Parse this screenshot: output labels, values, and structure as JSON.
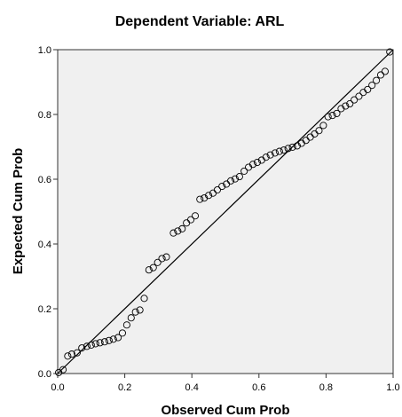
{
  "chart_data": {
    "type": "scatter",
    "title": "Dependent Variable: ARL",
    "xlabel": "Observed Cum Prob",
    "ylabel": "Expected Cum Prob",
    "xlim": [
      0.0,
      1.0
    ],
    "ylim": [
      0.0,
      1.0
    ],
    "xticks": [
      "0.0",
      "0.2",
      "0.4",
      "0.6",
      "0.8",
      "1.0"
    ],
    "yticks": [
      "0.0",
      "0.2",
      "0.4",
      "0.6",
      "0.8",
      "1.0"
    ],
    "grid": false,
    "reference_line": {
      "from": [
        0.0,
        0.0
      ],
      "to": [
        1.0,
        1.0
      ]
    },
    "colors": {
      "plot_background": "#f0f0f0",
      "marker_stroke": "#000000",
      "line": "#000000"
    },
    "points": [
      [
        0.003,
        0.003
      ],
      [
        0.016,
        0.012
      ],
      [
        0.03,
        0.054
      ],
      [
        0.042,
        0.06
      ],
      [
        0.058,
        0.064
      ],
      [
        0.072,
        0.079
      ],
      [
        0.087,
        0.084
      ],
      [
        0.1,
        0.088
      ],
      [
        0.113,
        0.092
      ],
      [
        0.126,
        0.095
      ],
      [
        0.14,
        0.098
      ],
      [
        0.153,
        0.102
      ],
      [
        0.166,
        0.106
      ],
      [
        0.18,
        0.111
      ],
      [
        0.193,
        0.125
      ],
      [
        0.206,
        0.15
      ],
      [
        0.219,
        0.172
      ],
      [
        0.232,
        0.19
      ],
      [
        0.245,
        0.196
      ],
      [
        0.258,
        0.232
      ],
      [
        0.272,
        0.32
      ],
      [
        0.285,
        0.327
      ],
      [
        0.298,
        0.343
      ],
      [
        0.311,
        0.355
      ],
      [
        0.324,
        0.36
      ],
      [
        0.345,
        0.434
      ],
      [
        0.358,
        0.44
      ],
      [
        0.371,
        0.447
      ],
      [
        0.384,
        0.465
      ],
      [
        0.397,
        0.475
      ],
      [
        0.41,
        0.487
      ],
      [
        0.424,
        0.538
      ],
      [
        0.437,
        0.542
      ],
      [
        0.45,
        0.55
      ],
      [
        0.463,
        0.557
      ],
      [
        0.476,
        0.567
      ],
      [
        0.49,
        0.578
      ],
      [
        0.503,
        0.585
      ],
      [
        0.516,
        0.595
      ],
      [
        0.529,
        0.601
      ],
      [
        0.542,
        0.608
      ],
      [
        0.556,
        0.625
      ],
      [
        0.569,
        0.637
      ],
      [
        0.582,
        0.646
      ],
      [
        0.595,
        0.652
      ],
      [
        0.608,
        0.659
      ],
      [
        0.621,
        0.668
      ],
      [
        0.634,
        0.675
      ],
      [
        0.648,
        0.681
      ],
      [
        0.661,
        0.686
      ],
      [
        0.674,
        0.69
      ],
      [
        0.687,
        0.695
      ],
      [
        0.7,
        0.699
      ],
      [
        0.714,
        0.703
      ],
      [
        0.727,
        0.711
      ],
      [
        0.74,
        0.72
      ],
      [
        0.753,
        0.73
      ],
      [
        0.766,
        0.74
      ],
      [
        0.779,
        0.75
      ],
      [
        0.792,
        0.766
      ],
      [
        0.806,
        0.793
      ],
      [
        0.819,
        0.797
      ],
      [
        0.832,
        0.803
      ],
      [
        0.845,
        0.818
      ],
      [
        0.858,
        0.826
      ],
      [
        0.871,
        0.833
      ],
      [
        0.884,
        0.845
      ],
      [
        0.898,
        0.856
      ],
      [
        0.911,
        0.868
      ],
      [
        0.924,
        0.877
      ],
      [
        0.937,
        0.89
      ],
      [
        0.95,
        0.905
      ],
      [
        0.963,
        0.922
      ],
      [
        0.976,
        0.933
      ],
      [
        0.99,
        0.993
      ]
    ]
  }
}
